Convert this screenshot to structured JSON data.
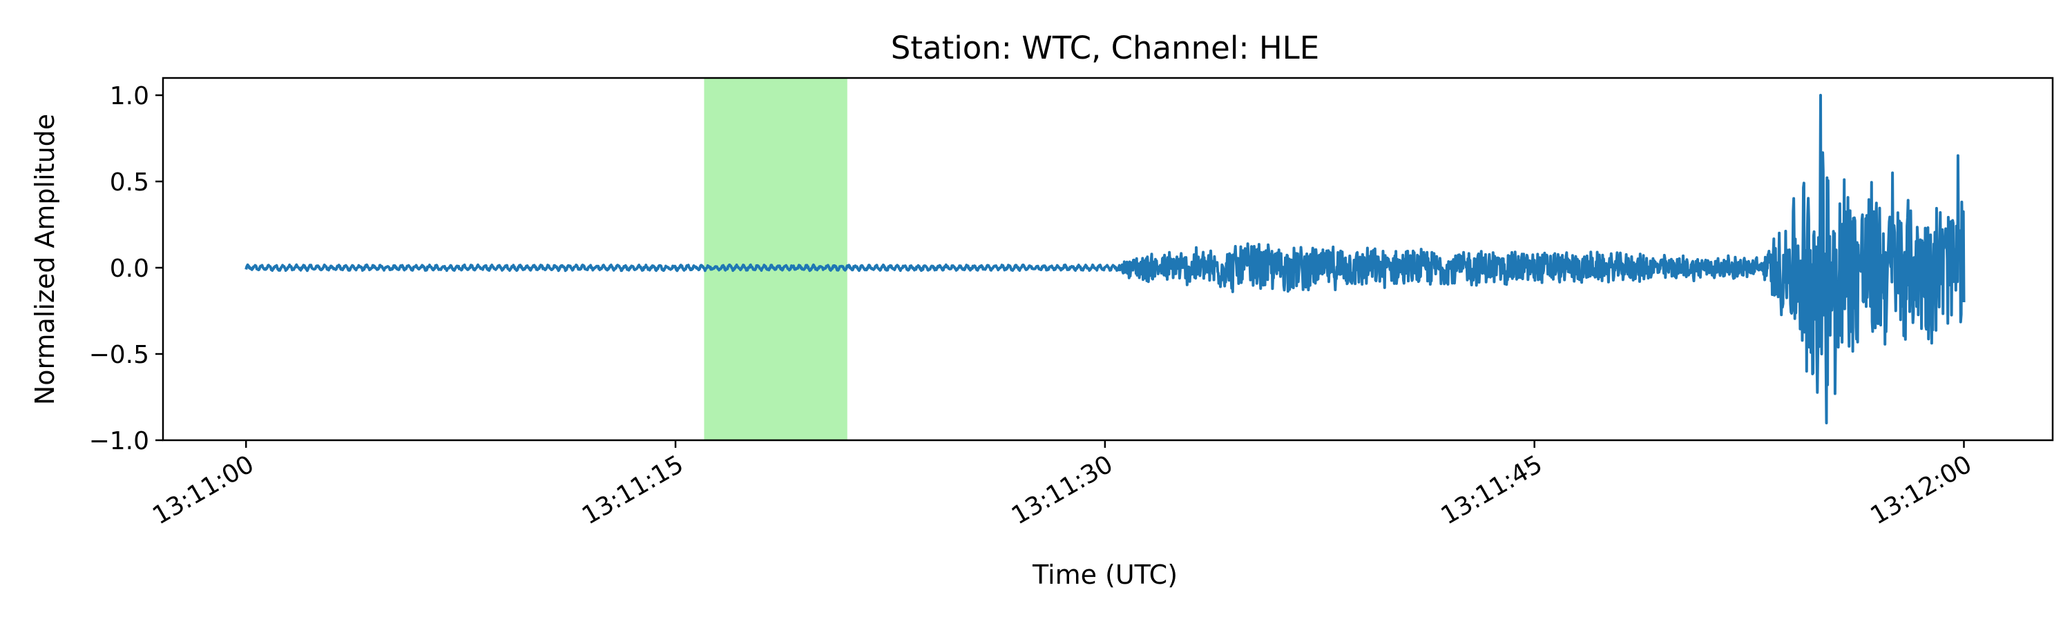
{
  "chart_data": {
    "type": "line",
    "title": "Station: WTC, Channel: HLE",
    "xlabel": "Time (UTC)",
    "ylabel": "Normalized Amplitude",
    "x_range_seconds": [
      0,
      60
    ],
    "xlim_seconds": [
      -2.9,
      63.1
    ],
    "ylim": [
      -1.0,
      1.1
    ],
    "x_ticks": [
      {
        "value": 0,
        "label": "13:11:00"
      },
      {
        "value": 15,
        "label": "13:11:15"
      },
      {
        "value": 30,
        "label": "13:11:30"
      },
      {
        "value": 45,
        "label": "13:11:45"
      },
      {
        "value": 60,
        "label": "13:12:00"
      }
    ],
    "y_ticks": [
      {
        "value": 1.0,
        "label": "1.0"
      },
      {
        "value": 0.5,
        "label": "0.5"
      },
      {
        "value": 0.0,
        "label": "0.0"
      },
      {
        "value": -0.5,
        "label": "−0.5"
      },
      {
        "value": -1.0,
        "label": "−1.0"
      }
    ],
    "highlight_window_seconds": [
      16.0,
      21.0
    ],
    "highlight_color": "#b2f2b0",
    "series": [
      {
        "color": "#1f77b4",
        "envelope": [
          {
            "t": 0,
            "amp": 0.02
          },
          {
            "t": 30.5,
            "amp": 0.02
          },
          {
            "t": 31.0,
            "amp": 0.08
          },
          {
            "t": 33.0,
            "amp": 0.12
          },
          {
            "t": 35.0,
            "amp": 0.16
          },
          {
            "t": 40.0,
            "amp": 0.12
          },
          {
            "t": 45.0,
            "amp": 0.11
          },
          {
            "t": 50.0,
            "amp": 0.08
          },
          {
            "t": 53.0,
            "amp": 0.07
          },
          {
            "t": 54.0,
            "amp": 0.45
          },
          {
            "t": 55.0,
            "amp": 0.85
          },
          {
            "t": 56.0,
            "amp": 0.6
          },
          {
            "t": 58.0,
            "amp": 0.45
          },
          {
            "t": 60.0,
            "amp": 0.45
          }
        ],
        "peaks": [
          {
            "t": 54.5,
            "y": -0.6
          },
          {
            "t": 55.0,
            "y": 1.0
          },
          {
            "t": 55.2,
            "y": -0.9
          },
          {
            "t": 55.5,
            "y": -0.73
          },
          {
            "t": 57.5,
            "y": 0.55
          },
          {
            "t": 59.8,
            "y": 0.65
          }
        ]
      }
    ]
  }
}
